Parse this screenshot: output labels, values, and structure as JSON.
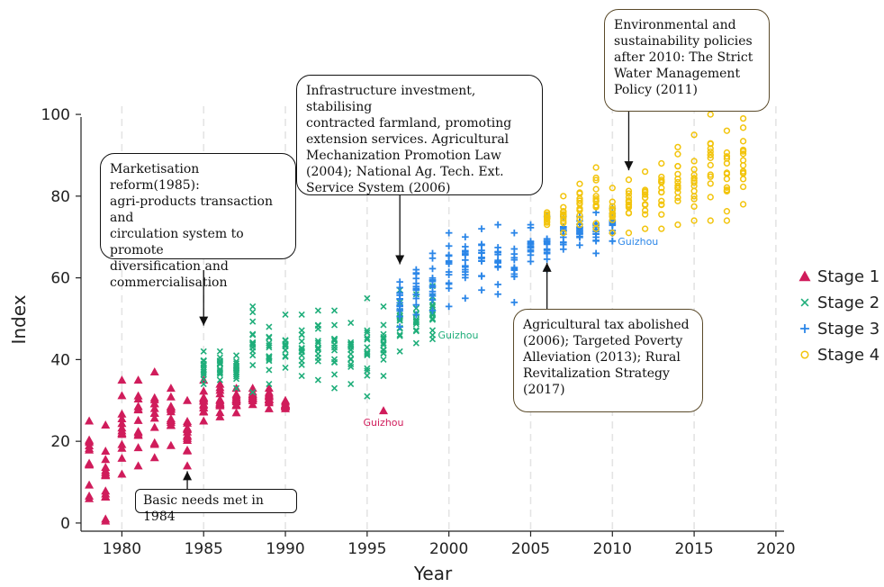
{
  "chart_data": {
    "type": "scatter",
    "xlabel": "Year",
    "ylabel": "Index",
    "xlim": [
      1977.5,
      2020.5
    ],
    "ylim": [
      -2,
      102
    ],
    "x_ticks": [
      1980,
      1985,
      1990,
      1995,
      2000,
      2005,
      2010,
      2015,
      2020
    ],
    "y_ticks": [
      0,
      20,
      40,
      60,
      80,
      100
    ],
    "grid": "vertical dashed",
    "legend_position": "right",
    "series": [
      {
        "name": "Stage 1",
        "marker": "triangle",
        "color": "#d01c5b",
        "ranges": [
          [
            1978,
            6,
            25
          ],
          [
            1979,
            1,
            24
          ],
          [
            1980,
            12,
            35
          ],
          [
            1981,
            14,
            35
          ],
          [
            1982,
            16,
            37
          ],
          [
            1983,
            19,
            33
          ],
          [
            1984,
            14,
            30
          ],
          [
            1985,
            25,
            35
          ],
          [
            1986,
            26,
            34
          ],
          [
            1987,
            27,
            33
          ],
          [
            1988,
            29,
            33
          ],
          [
            1989,
            28,
            33
          ],
          [
            1990,
            28,
            30
          ]
        ],
        "outliers": [
          {
            "x": 1979,
            "y": 0.5
          },
          {
            "x": 1996,
            "y": 27.5,
            "label": "Guizhou"
          }
        ]
      },
      {
        "name": "Stage 2",
        "marker": "x",
        "color": "#1fae7a",
        "ranges": [
          [
            1985,
            34,
            42
          ],
          [
            1986,
            35,
            42
          ],
          [
            1987,
            33,
            41
          ],
          [
            1988,
            32,
            53
          ],
          [
            1989,
            34,
            48
          ],
          [
            1990,
            38,
            51
          ],
          [
            1991,
            36,
            51
          ],
          [
            1992,
            35,
            52
          ],
          [
            1993,
            33,
            52
          ],
          [
            1994,
            34,
            49
          ],
          [
            1995,
            31,
            55
          ],
          [
            1996,
            36,
            53
          ],
          [
            1997,
            42,
            57
          ],
          [
            1998,
            44,
            56
          ],
          [
            1999,
            45,
            58
          ]
        ],
        "outliers": [
          {
            "x": 1999,
            "y": 46,
            "label": "Guizhou"
          }
        ]
      },
      {
        "name": "Stage 3",
        "marker": "plus",
        "color": "#2b86e8",
        "ranges": [
          [
            1997,
            48,
            59
          ],
          [
            1998,
            51,
            62
          ],
          [
            1999,
            52,
            66
          ],
          [
            2000,
            53,
            71
          ],
          [
            2001,
            55,
            70
          ],
          [
            2002,
            57,
            72
          ],
          [
            2003,
            56,
            73
          ],
          [
            2004,
            54,
            71
          ],
          [
            2005,
            64,
            73
          ],
          [
            2006,
            62,
            75
          ],
          [
            2007,
            67,
            75
          ],
          [
            2008,
            68,
            75
          ],
          [
            2009,
            66,
            76
          ],
          [
            2010,
            69,
            77
          ]
        ],
        "outliers": [
          {
            "x": 2010,
            "y": 69,
            "label": "Guizhou"
          }
        ]
      },
      {
        "name": "Stage 4",
        "marker": "circle",
        "color": "#f2c40c",
        "ranges": [
          [
            2006,
            73,
            76
          ],
          [
            2007,
            71,
            80
          ],
          [
            2008,
            73,
            83
          ],
          [
            2009,
            72,
            87
          ],
          [
            2010,
            71,
            82
          ],
          [
            2011,
            71,
            84
          ],
          [
            2012,
            72,
            86
          ],
          [
            2013,
            72,
            88
          ],
          [
            2014,
            73,
            92
          ],
          [
            2015,
            74,
            95
          ],
          [
            2016,
            74,
            100
          ],
          [
            2017,
            74,
            96
          ],
          [
            2018,
            78,
            99
          ]
        ],
        "outliers": []
      }
    ],
    "annotations": [
      {
        "text": "Basic needs met in 1984",
        "x": 1984,
        "y": 14
      },
      {
        "text": "Marketisation reform(1985):\nagri-products transaction and\ncirculation system to promote\ndiversification and\ncommercialisation",
        "x": 1985,
        "y": 47
      },
      {
        "text": "Infrastructure investment, stabilising\ncontracted farmland, promoting\nextension services. Agricultural\nMechanization Promotion Law\n(2004); National Ag. Tech. Ext.\nService System (2006)",
        "x": 1997,
        "y": 62
      },
      {
        "text": "Environmental and\nsustainability policies\nafter 2010: The Strict\nWater Management\nPolicy (2011)",
        "x": 2011,
        "y": 85
      },
      {
        "text": "Agricultural tax abolished\n(2006); Targeted Poverty\nAlleviation (2013); Rural\nRevitalization Strategy\n(2017)",
        "x": 2006,
        "y": 65
      }
    ]
  }
}
